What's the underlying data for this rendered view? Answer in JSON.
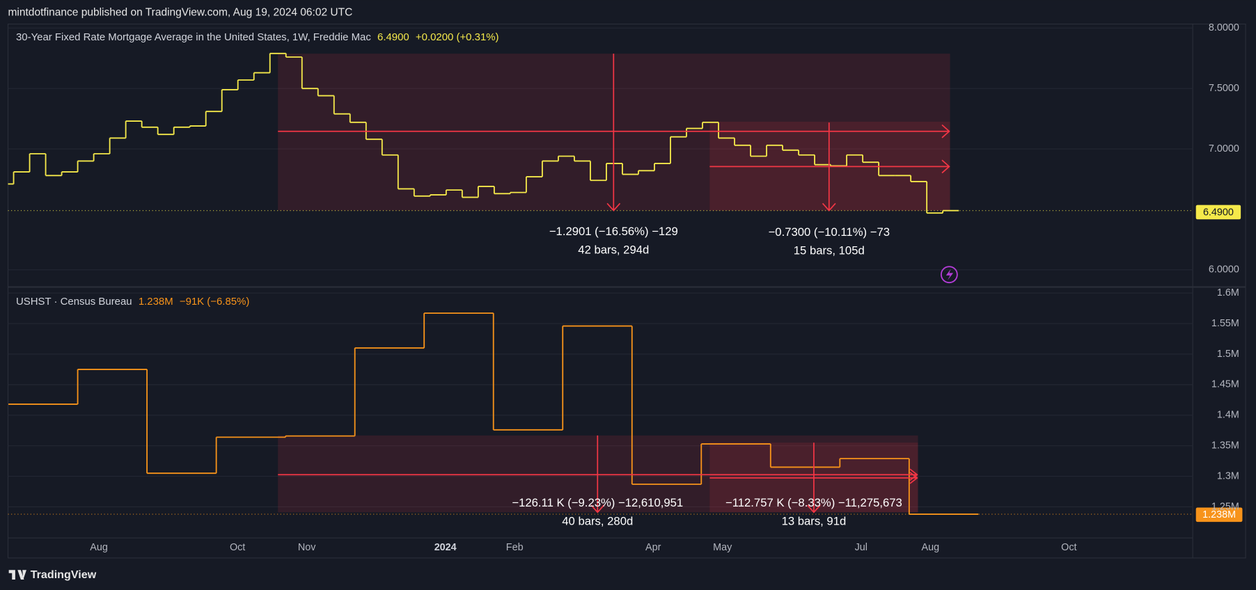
{
  "header": {
    "text": "mintdotfinance published on TradingView.com, Aug 19, 2024 06:02 UTC"
  },
  "footer": {
    "brand": "TradingView"
  },
  "chart_data": [
    {
      "type": "step",
      "title": "30-Year Fixed Rate Mortgage Average in the United States, 1W, Freddie Mac",
      "last_value_label": "6.4900",
      "change_label": "+0.0200 (+0.31%)",
      "color": "#f5e94a",
      "values": [
        6.71,
        6.81,
        6.96,
        6.78,
        6.81,
        6.9,
        6.96,
        7.09,
        7.23,
        7.18,
        7.12,
        7.18,
        7.19,
        7.31,
        7.49,
        7.57,
        7.63,
        7.79,
        7.76,
        7.5,
        7.44,
        7.29,
        7.22,
        7.08,
        6.95,
        6.67,
        6.61,
        6.62,
        6.66,
        6.6,
        6.69,
        6.63,
        6.64,
        6.77,
        6.9,
        6.94,
        6.9,
        6.74,
        6.88,
        6.79,
        6.82,
        6.88,
        7.1,
        7.17,
        7.22,
        7.09,
        7.03,
        6.94,
        7.03,
        6.99,
        6.95,
        6.87,
        6.86,
        6.95,
        6.89,
        6.78,
        6.78,
        6.73,
        6.47,
        6.49
      ],
      "ylim": [
        5.868,
        8.033
      ],
      "yticks": [
        {
          "value": 6,
          "label": "6.0000"
        },
        {
          "value": 7,
          "label": "7.0000"
        },
        {
          "value": 7.5,
          "label": "7.5000"
        },
        {
          "value": 8,
          "label": "8.0000"
        }
      ],
      "grid": true,
      "annotations": [
        {
          "text": "−1.2901 (−16.56%) −129",
          "detail": "42 bars, 294d"
        },
        {
          "text": "−0.7300 (−10.11%) −73",
          "detail": "15 bars, 105d"
        }
      ]
    },
    {
      "type": "step",
      "title": "USHST · Census Bureau",
      "last_value_label": "1.238M",
      "change_label": "−91K (−6.85%)",
      "color": "#f7931a",
      "categories": [
        null,
        null,
        "Aug",
        null,
        "Oct",
        "Nov",
        null,
        "2024",
        "Feb",
        null,
        "Apr",
        "May",
        null,
        "Jul",
        "Aug",
        null,
        "Oct"
      ],
      "values": [
        1418000,
        1475000,
        1305000,
        1364000,
        1366000,
        1510000,
        1567000,
        1376000,
        1546000,
        1287000,
        1353000,
        1315000,
        1329000,
        1238000,
        null,
        null,
        null
      ],
      "ylim": [
        1199100,
        1607900
      ],
      "yticks": [
        {
          "value": 1250000,
          "label": "1.25M"
        },
        {
          "value": 1300000,
          "label": "1.3M"
        },
        {
          "value": 1350000,
          "label": "1.35M"
        },
        {
          "value": 1400000,
          "label": "1.4M"
        },
        {
          "value": 1450000,
          "label": "1.45M"
        },
        {
          "value": 1500000,
          "label": "1.5M"
        },
        {
          "value": 1550000,
          "label": "1.55M"
        },
        {
          "value": 1600000,
          "label": "1.6M"
        }
      ],
      "grid": true,
      "annotations": [
        {
          "text": "−126.11 K (−9.23%) −12,610,951",
          "detail": "40 bars, 280d"
        },
        {
          "text": "−112.757 K (−8.33%) −11,275,673",
          "detail": "13 bars, 91d"
        }
      ]
    }
  ]
}
